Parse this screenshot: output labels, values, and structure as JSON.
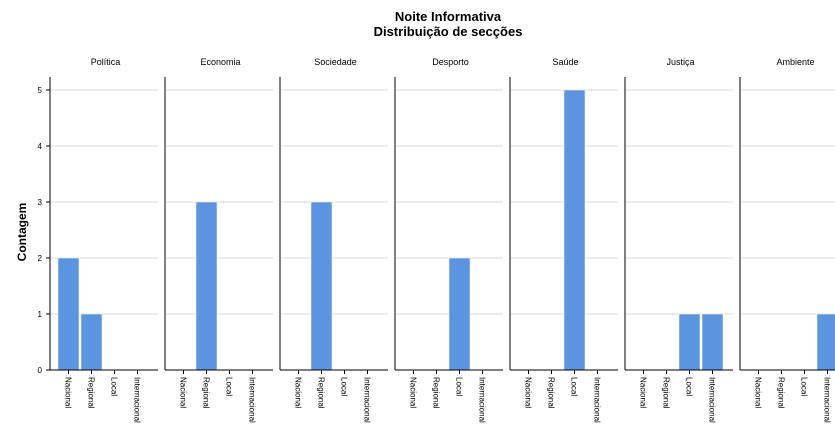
{
  "chart_data": {
    "type": "bar",
    "title": "Noite Informativa",
    "subtitle": "Distribuição de secções",
    "ylabel": "Contagem",
    "ylim": [
      0,
      5
    ],
    "yticks": [
      0,
      1,
      2,
      3,
      4,
      5
    ],
    "grid": true,
    "categories": [
      "Nacional",
      "Regional",
      "Local",
      "Internacional"
    ],
    "bar_color": "#5b95e0",
    "panels": [
      {
        "name": "Política",
        "values": [
          2,
          1,
          0,
          0
        ]
      },
      {
        "name": "Economia",
        "values": [
          0,
          3,
          0,
          0
        ]
      },
      {
        "name": "Sociedade",
        "values": [
          0,
          3,
          0,
          0
        ]
      },
      {
        "name": "Desporto",
        "values": [
          0,
          0,
          2,
          0
        ]
      },
      {
        "name": "Saúde",
        "values": [
          0,
          0,
          5,
          0
        ]
      },
      {
        "name": "Justiça",
        "values": [
          0,
          0,
          1,
          1
        ]
      },
      {
        "name": "Ambiente",
        "values": [
          0,
          0,
          0,
          1
        ]
      }
    ]
  }
}
